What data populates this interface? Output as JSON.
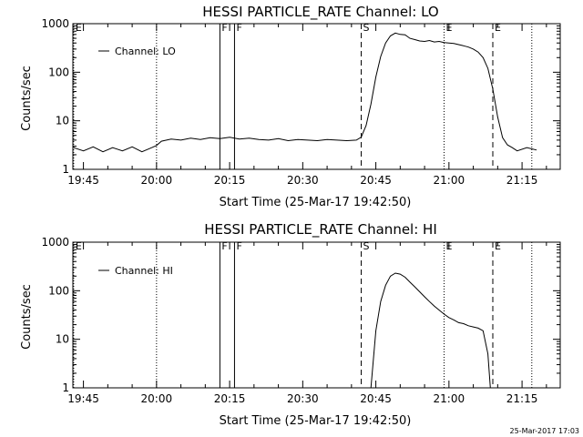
{
  "chart_data": [
    {
      "type": "line",
      "title": "HESSI PARTICLE_RATE Channel: LO",
      "xlabel": "Start Time (25-Mar-17 19:42:50)",
      "ylabel": "Counts/sec",
      "yscale": "log",
      "ylim": [
        1,
        1000
      ],
      "ytick_labels": [
        "1",
        "10",
        "100",
        "1000"
      ],
      "xlim": [
        "19:42:50",
        "21:22:50"
      ],
      "xtick_labels": [
        "19:45",
        "20:00",
        "20:15",
        "20:30",
        "20:45",
        "21:00",
        "21:15"
      ],
      "legend": {
        "position": "top-left",
        "entries": [
          "Channel: LO"
        ]
      },
      "series": [
        {
          "name": "Channel: LO",
          "x": [
            "19:43",
            "19:45",
            "19:47",
            "19:49",
            "19:51",
            "19:53",
            "19:55",
            "19:57",
            "19:59",
            "20:00",
            "20:01",
            "20:03",
            "20:05",
            "20:07",
            "20:09",
            "20:11",
            "20:13",
            "20:15",
            "20:17",
            "20:19",
            "20:21",
            "20:23",
            "20:25",
            "20:27",
            "20:29",
            "20:31",
            "20:33",
            "20:35",
            "20:37",
            "20:39",
            "20:41",
            "20:42",
            "20:43",
            "20:44",
            "20:45",
            "20:46",
            "20:47",
            "20:48",
            "20:49",
            "20:50",
            "20:51",
            "20:52",
            "20:53",
            "20:54",
            "20:55",
            "20:56",
            "20:57",
            "20:58",
            "20:59",
            "21:00",
            "21:01",
            "21:02",
            "21:03",
            "21:04",
            "21:05",
            "21:06",
            "21:07",
            "21:08",
            "21:09",
            "21:10",
            "21:11",
            "21:12",
            "21:13",
            "21:14",
            "21:16",
            "21:18"
          ],
          "y": [
            2.8,
            2.4,
            2.9,
            2.3,
            2.8,
            2.4,
            2.9,
            2.3,
            2.8,
            3.1,
            3.8,
            4.2,
            4.0,
            4.4,
            4.1,
            4.5,
            4.3,
            4.6,
            4.2,
            4.4,
            4.1,
            4.0,
            4.3,
            3.9,
            4.1,
            4.0,
            3.9,
            4.1,
            4.0,
            3.9,
            4.0,
            4.6,
            8,
            22,
            80,
            210,
            400,
            560,
            640,
            600,
            590,
            500,
            470,
            440,
            430,
            450,
            420,
            430,
            410,
            400,
            390,
            370,
            350,
            330,
            300,
            260,
            200,
            120,
            45,
            12,
            4.5,
            3.2,
            2.8,
            2.4,
            2.8,
            2.5
          ]
        }
      ],
      "markers": [
        {
          "label": "F",
          "x": "20:13",
          "style": "solid"
        },
        {
          "label": "F",
          "x": "20:16",
          "style": "solid"
        },
        {
          "label": "S",
          "x": "20:42",
          "style": "dashed"
        },
        {
          "label": "E",
          "x": "21:09",
          "style": "dashed"
        },
        {
          "label": "",
          "x": "20:00",
          "style": "dotted"
        },
        {
          "label": "E",
          "x": "20:59",
          "style": "dotted"
        },
        {
          "label": "",
          "x": "21:17",
          "style": "dotted"
        },
        {
          "label": "E",
          "x": "19:43",
          "style": "dotted"
        }
      ]
    },
    {
      "type": "line",
      "title": "HESSI PARTICLE_RATE Channel: HI",
      "xlabel": "Start Time (25-Mar-17 19:42:50)",
      "ylabel": "Counts/sec",
      "yscale": "log",
      "ylim": [
        1,
        1000
      ],
      "ytick_labels": [
        "1",
        "10",
        "100",
        "1000"
      ],
      "xlim": [
        "19:42:50",
        "21:22:50"
      ],
      "xtick_labels": [
        "19:45",
        "20:00",
        "20:15",
        "20:30",
        "20:45",
        "21:00",
        "21:15"
      ],
      "legend": {
        "position": "top-left",
        "entries": [
          "Channel: HI"
        ]
      },
      "series": [
        {
          "name": "Channel: HI",
          "x": [
            "20:44",
            "20:45",
            "20:46",
            "20:47",
            "20:48",
            "20:49",
            "20:50",
            "20:51",
            "20:52",
            "20:53",
            "20:54",
            "20:55",
            "20:56",
            "20:57",
            "20:58",
            "20:59",
            "21:00",
            "21:01",
            "21:02",
            "21:03",
            "21:04",
            "21:05",
            "21:06",
            "21:07",
            "21:08",
            "21:08:30"
          ],
          "y": [
            1,
            15,
            60,
            130,
            200,
            230,
            220,
            190,
            150,
            120,
            95,
            75,
            60,
            48,
            40,
            33,
            28,
            25,
            22,
            21,
            19,
            18,
            17,
            15,
            5,
            1
          ]
        }
      ],
      "markers": [
        {
          "label": "F",
          "x": "20:13",
          "style": "solid"
        },
        {
          "label": "F",
          "x": "20:16",
          "style": "solid"
        },
        {
          "label": "S",
          "x": "20:42",
          "style": "dashed"
        },
        {
          "label": "E",
          "x": "21:09",
          "style": "dashed"
        },
        {
          "label": "",
          "x": "20:00",
          "style": "dotted"
        },
        {
          "label": "E",
          "x": "20:59",
          "style": "dotted"
        },
        {
          "label": "",
          "x": "21:17",
          "style": "dotted"
        },
        {
          "label": "E",
          "x": "19:43",
          "style": "dotted"
        }
      ]
    }
  ],
  "footer": {
    "stamp": "25-Mar-2017 17:03"
  }
}
